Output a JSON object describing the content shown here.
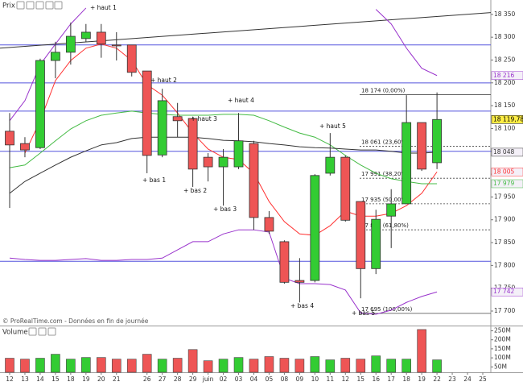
{
  "chart_data": [
    {
      "type": "candlestick",
      "title": "Prix",
      "source": "© ProRealTime.com - Données en fin de journée",
      "categories": [
        "12",
        "13",
        "14",
        "15",
        "18",
        "19",
        "20",
        "21",
        null,
        "26",
        "27",
        "28",
        "29",
        "juin",
        "02",
        "03",
        "04",
        "05",
        "08",
        "09",
        "10",
        "11",
        "12",
        "15",
        "16",
        "17",
        "18",
        "19",
        "22",
        "23",
        "24",
        "25"
      ],
      "open": [
        18094,
        18067,
        18058,
        18249,
        18267,
        18297,
        18311,
        18283,
        18283,
        18226,
        18042,
        18126,
        18122,
        18037,
        18016,
        18016,
        18067,
        17905,
        17852,
        17767,
        17767,
        18002,
        18037,
        17940,
        17793,
        17908,
        17935,
        18113,
        18025,
        null,
        null,
        null
      ],
      "high": [
        18134,
        18081,
        18253,
        18290,
        18332,
        18329,
        18329,
        18311,
        18283,
        18226,
        18187,
        18156,
        18126,
        18046,
        18055,
        18134,
        18073,
        17919,
        17855,
        17816,
        18000,
        18090,
        18041,
        17940,
        17922,
        17967,
        18173,
        18113,
        18179,
        null,
        null,
        null
      ],
      "low": [
        17926,
        18037,
        18055,
        18210,
        18240,
        18290,
        18255,
        18249,
        18214,
        18002,
        18037,
        18081,
        17972,
        17984,
        17931,
        18011,
        17878,
        17869,
        17760,
        17719,
        17763,
        17997,
        17896,
        17728,
        17781,
        17838,
        17935,
        18007,
        18011,
        null,
        null,
        null
      ],
      "close": [
        18064,
        18053,
        18249,
        18267,
        18302,
        18311,
        18285,
        18281,
        18223,
        18041,
        18161,
        18117,
        18011,
        18016,
        18037,
        18073,
        17905,
        17875,
        17763,
        17763,
        17997,
        18037,
        17899,
        17793,
        17901,
        17935,
        18113,
        18011,
        18119.78,
        null,
        null,
        null
      ],
      "last_label": "18 119,78",
      "up_color": "#33cc33",
      "down_color": "#ee5555",
      "series": [
        {
          "color": "#ff3030",
          "last_label": "18 005",
          "values": [
            null,
            18046,
            18117,
            18205,
            18249,
            18276,
            18285,
            18276,
            18249,
            18196,
            18173,
            18134,
            18090,
            18055,
            18037,
            18032,
            18002,
            17940,
            17896,
            17869,
            17866,
            17887,
            17919,
            17908,
            17908,
            17914,
            17931,
            17958,
            18005,
            null,
            null,
            null
          ]
        },
        {
          "color": "#44bb44",
          "last_label": "17 979",
          "values": [
            18014,
            18020,
            18046,
            18073,
            18099,
            18117,
            18129,
            18134,
            18138,
            18134,
            18131,
            18129,
            18129,
            18129,
            18131,
            18131,
            18129,
            18117,
            18103,
            18090,
            18081,
            18064,
            18041,
            18020,
            18002,
            17990,
            17984,
            17979,
            17979,
            null,
            null,
            null
          ]
        },
        {
          "color": "#333333",
          "last_label": "18 048",
          "values": [
            17958,
            17984,
            18002,
            18020,
            18037,
            18051,
            18064,
            18069,
            18078,
            18081,
            18081,
            18081,
            18081,
            18078,
            18074,
            18073,
            18071,
            18067,
            18064,
            18060,
            18058,
            18057,
            18055,
            18053,
            18053,
            18050,
            18046,
            18046,
            18048,
            null,
            null,
            null
          ]
        },
        {
          "color": "#9933cc",
          "last_label": "18 216",
          "values": [
            18117,
            18161,
            18240,
            18285,
            18329,
            18364,
            null,
            null,
            null,
            null,
            null,
            null,
            null,
            null,
            null,
            null,
            null,
            null,
            null,
            null,
            null,
            null,
            null,
            null,
            18361,
            18329,
            18276,
            18232,
            18216,
            null,
            null,
            null
          ]
        },
        {
          "color": "#9933cc",
          "last_label": "17 742",
          "values": [
            17816,
            17813,
            17811,
            17811,
            17813,
            17815,
            17811,
            17811,
            17813,
            17813,
            17816,
            17834,
            17852,
            17852,
            17869,
            17878,
            17878,
            17873,
            17772,
            17760,
            17760,
            17758,
            17746,
            17696,
            17693,
            17702,
            17719,
            17732,
            17742,
            null,
            null,
            null
          ]
        }
      ],
      "levels": [
        18283,
        18200,
        18138,
        18050,
        17809
      ],
      "level_color": "#5555dd",
      "trendline": [
        18276,
        18354
      ],
      "fibonacci": {
        "values": [
          18174,
          18061,
          17991,
          17935,
          17878,
          17695
        ],
        "value_labels": [
          "18 174 (0,00%)",
          "18 061 (23,60%)",
          "17 991 (38,20%)",
          "17 935 (50,00%)",
          "17 878 (61,80%)",
          "17 695 (100,00%)"
        ]
      },
      "annotations": [
        "+ haut 1",
        "+ haut 2",
        "+ haut 3",
        "+ haut 4",
        "+ haut 5",
        "+ bas 1",
        "+ bas 2",
        "+ bas 3",
        "+ bas 4",
        "+ bas 5"
      ],
      "ylim": [
        17670,
        18378
      ],
      "yticks": [
        {
          "value": 18350,
          "label": "18 350"
        },
        {
          "value": 18300,
          "label": "18 300"
        },
        {
          "value": 18250,
          "label": "18 250"
        },
        {
          "value": 18200,
          "label": "18 200"
        },
        {
          "value": 18150,
          "label": "18 150"
        },
        {
          "value": 18100,
          "label": "18 100"
        },
        {
          "value": 18050,
          "label": "18 050"
        },
        {
          "value": 18000,
          "label": "18 000"
        },
        {
          "value": 17950,
          "label": "17 950"
        },
        {
          "value": 17900,
          "label": "17 900"
        },
        {
          "value": 17850,
          "label": "17 850"
        },
        {
          "value": 17800,
          "label": "17 800"
        },
        {
          "value": 17750,
          "label": "17 750"
        },
        {
          "value": 17700,
          "label": "17 700"
        }
      ]
    },
    {
      "type": "bar",
      "title": "Volume",
      "categories": [
        "12",
        "13",
        "14",
        "15",
        "18",
        "19",
        "20",
        "21",
        null,
        "26",
        "27",
        "28",
        "29",
        "juin",
        "02",
        "03",
        "04",
        "05",
        "08",
        "09",
        "10",
        "11",
        "12",
        "15",
        "16",
        "17",
        "18",
        "19",
        "22",
        "23",
        "24",
        "25"
      ],
      "values": [
        98,
        93,
        98,
        120,
        93,
        102,
        102,
        93,
        93,
        120,
        93,
        98,
        146,
        84,
        93,
        102,
        93,
        107,
        98,
        93,
        107,
        89,
        98,
        93,
        111,
        93,
        93,
        257,
        89,
        null,
        null,
        null
      ],
      "ylim": [
        20,
        270
      ],
      "yticks": [
        {
          "value": 250,
          "label": "250M"
        },
        {
          "value": 200,
          "label": "200M"
        },
        {
          "value": 150,
          "label": "150M"
        },
        {
          "value": 100,
          "label": "100M"
        },
        {
          "value": 50,
          "label": "50M"
        }
      ]
    }
  ]
}
